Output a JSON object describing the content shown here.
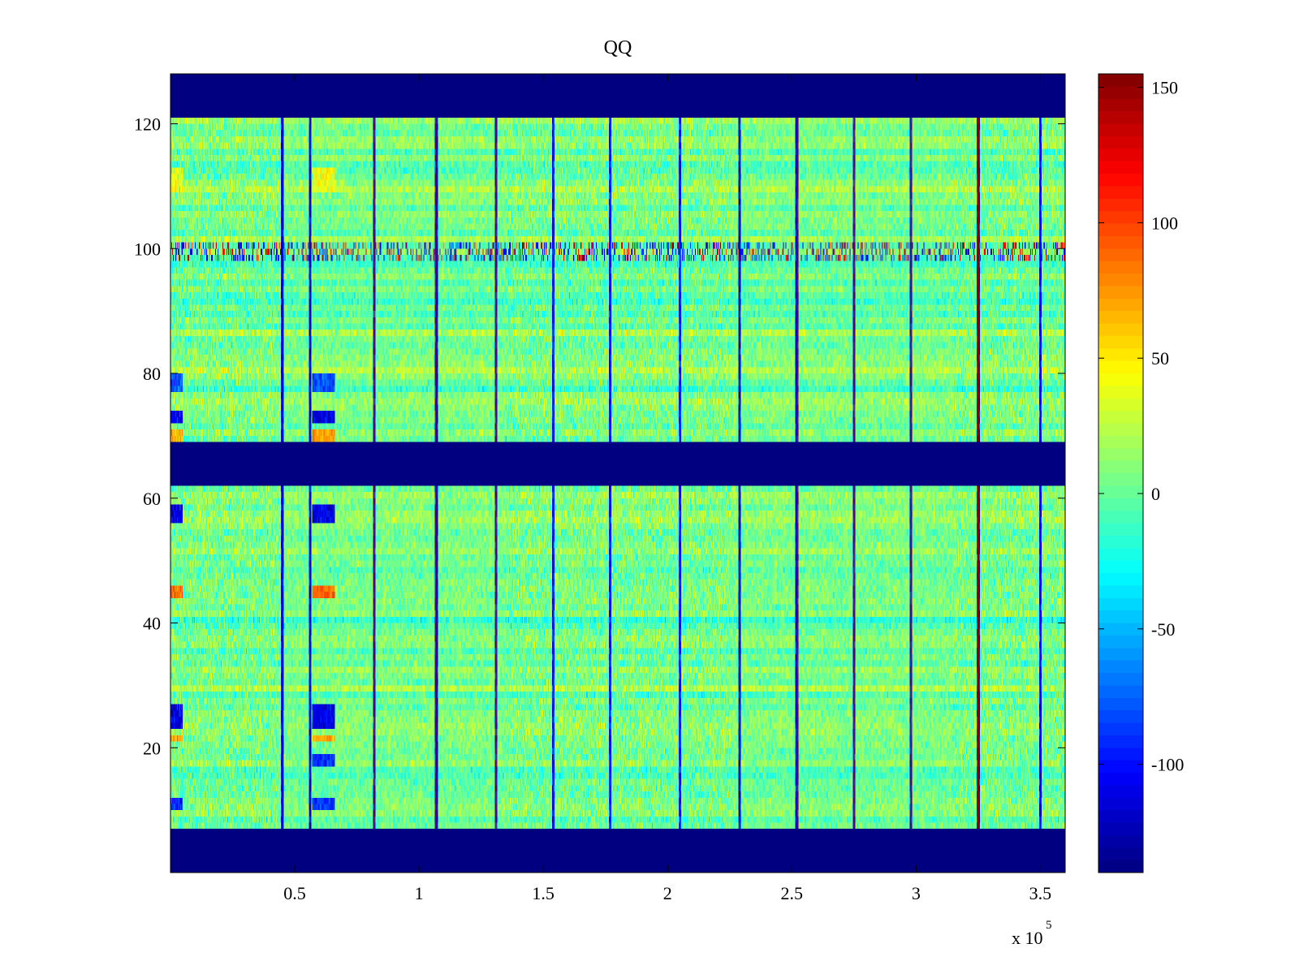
{
  "chart_data": [
    {
      "type": "heatmap",
      "title": "QQ",
      "xlabel": "",
      "ylabel": "",
      "x_exponent_label": "x 10",
      "x_exponent_power": "5",
      "xlim": [
        0,
        360000
      ],
      "ylim": [
        0,
        128
      ],
      "x_ticks": [
        50000,
        100000,
        150000,
        200000,
        250000,
        300000,
        350000
      ],
      "x_tick_labels": [
        "0.5",
        "1",
        "1.5",
        "2",
        "2.5",
        "3",
        "3.5"
      ],
      "y_ticks": [
        20,
        40,
        60,
        80,
        100,
        120
      ],
      "y_tick_labels": [
        "20",
        "40",
        "60",
        "80",
        "100",
        "120"
      ],
      "colormap": "jet",
      "clim": [
        -140,
        155
      ],
      "empty_row_bands": [
        [
          0,
          7
        ],
        [
          62,
          69
        ],
        [
          121,
          128
        ]
      ],
      "empty_band_value": -140,
      "data_row_bands": [
        [
          7,
          62
        ],
        [
          69,
          121
        ]
      ],
      "background_mean": 5,
      "vertical_stripe_x": [
        45000,
        56000,
        82000,
        107000,
        131000,
        154000,
        177000,
        205000,
        229000,
        252000,
        275000,
        298000,
        325000,
        350000
      ],
      "noisy_row_band": [
        98,
        101
      ],
      "low_value_regions": [
        {
          "x": [
            0,
            5000
          ],
          "y": [
            23,
            27
          ],
          "value": -110
        },
        {
          "x": [
            57000,
            66000
          ],
          "y": [
            23,
            27
          ],
          "value": -110
        },
        {
          "x": [
            0,
            5000
          ],
          "y": [
            56,
            59
          ],
          "value": -110
        },
        {
          "x": [
            57000,
            66000
          ],
          "y": [
            56,
            59
          ],
          "value": -110
        },
        {
          "x": [
            0,
            5000
          ],
          "y": [
            72,
            74
          ],
          "value": -110
        },
        {
          "x": [
            57000,
            66000
          ],
          "y": [
            72,
            74
          ],
          "value": -110
        },
        {
          "x": [
            0,
            5000
          ],
          "y": [
            77,
            80
          ],
          "value": -80
        },
        {
          "x": [
            57000,
            66000
          ],
          "y": [
            77,
            80
          ],
          "value": -80
        },
        {
          "x": [
            0,
            5000
          ],
          "y": [
            10,
            12
          ],
          "value": -90
        },
        {
          "x": [
            57000,
            66000
          ],
          "y": [
            10,
            12
          ],
          "value": -90
        },
        {
          "x": [
            57000,
            66000
          ],
          "y": [
            17,
            19
          ],
          "value": -90
        }
      ],
      "high_value_regions": [
        {
          "x": [
            0,
            5000
          ],
          "y": [
            44,
            46
          ],
          "value": 90
        },
        {
          "x": [
            57000,
            66000
          ],
          "y": [
            44,
            46
          ],
          "value": 90
        },
        {
          "x": [
            0,
            5000
          ],
          "y": [
            69,
            71
          ],
          "value": 70
        },
        {
          "x": [
            57000,
            66000
          ],
          "y": [
            69,
            71
          ],
          "value": 70
        },
        {
          "x": [
            0,
            5000
          ],
          "y": [
            109,
            113
          ],
          "value": 40
        },
        {
          "x": [
            57000,
            66000
          ],
          "y": [
            109,
            113
          ],
          "value": 40
        },
        {
          "x": [
            0,
            5000
          ],
          "y": [
            21,
            22
          ],
          "value": 70
        },
        {
          "x": [
            57000,
            66000
          ],
          "y": [
            21,
            22
          ],
          "value": 70
        }
      ]
    },
    {
      "type": "colorbar",
      "colormap": "jet",
      "range": [
        -140,
        155
      ],
      "ticks": [
        150,
        100,
        50,
        0,
        -50,
        -100
      ],
      "tick_labels": [
        "150",
        "100",
        "50",
        "0",
        "-50",
        "-100"
      ]
    }
  ]
}
